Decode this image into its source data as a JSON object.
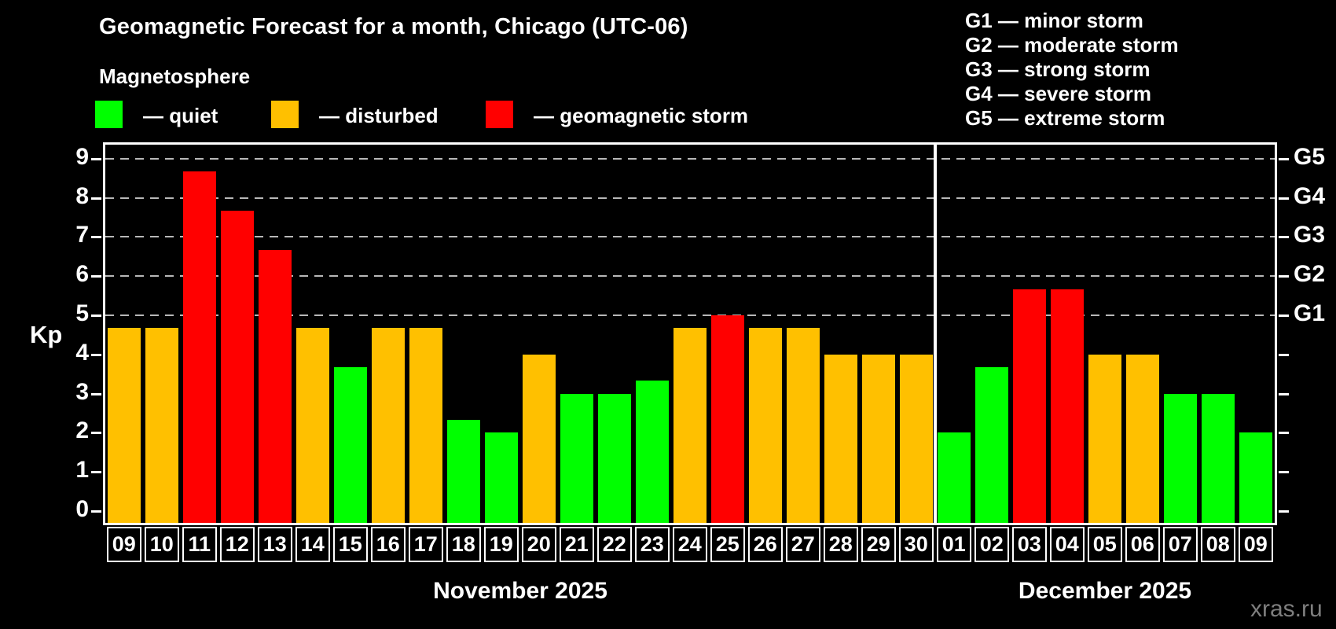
{
  "title": "Geomagnetic Forecast for a month, Chicago (UTC-06)",
  "subtitle": "Magnetosphere",
  "legend": {
    "quiet": "— quiet",
    "disturbed": "— disturbed",
    "storm": "— geomagnetic storm"
  },
  "g_legend": [
    "G1 — minor storm",
    "G2 — moderate storm",
    "G3 — strong storm",
    "G4 — severe storm",
    "G5 — extreme storm"
  ],
  "watermark": "xras.ru",
  "chart_data": {
    "type": "bar",
    "ylabel": "Kp",
    "ylim": [
      0,
      9
    ],
    "y_ticks": [
      0,
      1,
      2,
      3,
      4,
      5,
      6,
      7,
      8,
      9
    ],
    "gridlines_at": [
      5,
      6,
      7,
      8,
      9
    ],
    "grid_style": "dashed",
    "legend_position": "top-left",
    "right_axis_labels": [
      {
        "kp": 5,
        "label": "G1"
      },
      {
        "kp": 6,
        "label": "G2"
      },
      {
        "kp": 7,
        "label": "G3"
      },
      {
        "kp": 8,
        "label": "G4"
      },
      {
        "kp": 9,
        "label": "G5"
      }
    ],
    "colors": {
      "quiet": "#00ff00",
      "disturbed": "#ffc000",
      "storm": "#ff0000",
      "background": "#000000",
      "text": "#ffffff",
      "gridline": "#b8b8b8",
      "watermark": "#7e7e7e"
    },
    "months": [
      {
        "label": "November 2025",
        "days": [
          {
            "day": "09",
            "kp": 4.67,
            "state": "disturbed"
          },
          {
            "day": "10",
            "kp": 4.67,
            "state": "disturbed"
          },
          {
            "day": "11",
            "kp": 8.67,
            "state": "storm"
          },
          {
            "day": "12",
            "kp": 7.67,
            "state": "storm"
          },
          {
            "day": "13",
            "kp": 6.67,
            "state": "storm"
          },
          {
            "day": "14",
            "kp": 4.67,
            "state": "disturbed"
          },
          {
            "day": "15",
            "kp": 3.67,
            "state": "quiet"
          },
          {
            "day": "16",
            "kp": 4.67,
            "state": "disturbed"
          },
          {
            "day": "17",
            "kp": 4.67,
            "state": "disturbed"
          },
          {
            "day": "18",
            "kp": 2.33,
            "state": "quiet"
          },
          {
            "day": "19",
            "kp": 2.0,
            "state": "quiet"
          },
          {
            "day": "20",
            "kp": 4.0,
            "state": "disturbed"
          },
          {
            "day": "21",
            "kp": 3.0,
            "state": "quiet"
          },
          {
            "day": "22",
            "kp": 3.0,
            "state": "quiet"
          },
          {
            "day": "23",
            "kp": 3.33,
            "state": "quiet"
          },
          {
            "day": "24",
            "kp": 4.67,
            "state": "disturbed"
          },
          {
            "day": "25",
            "kp": 5.0,
            "state": "storm"
          },
          {
            "day": "26",
            "kp": 4.67,
            "state": "disturbed"
          },
          {
            "day": "27",
            "kp": 4.67,
            "state": "disturbed"
          },
          {
            "day": "28",
            "kp": 4.0,
            "state": "disturbed"
          },
          {
            "day": "29",
            "kp": 4.0,
            "state": "disturbed"
          },
          {
            "day": "30",
            "kp": 4.0,
            "state": "disturbed"
          }
        ]
      },
      {
        "label": "December 2025",
        "days": [
          {
            "day": "01",
            "kp": 2.0,
            "state": "quiet"
          },
          {
            "day": "02",
            "kp": 3.67,
            "state": "quiet"
          },
          {
            "day": "03",
            "kp": 5.67,
            "state": "storm"
          },
          {
            "day": "04",
            "kp": 5.67,
            "state": "storm"
          },
          {
            "day": "05",
            "kp": 4.0,
            "state": "disturbed"
          },
          {
            "day": "06",
            "kp": 4.0,
            "state": "disturbed"
          },
          {
            "day": "07",
            "kp": 3.0,
            "state": "quiet"
          },
          {
            "day": "08",
            "kp": 3.0,
            "state": "quiet"
          },
          {
            "day": "09",
            "kp": 2.0,
            "state": "quiet"
          }
        ]
      }
    ]
  }
}
